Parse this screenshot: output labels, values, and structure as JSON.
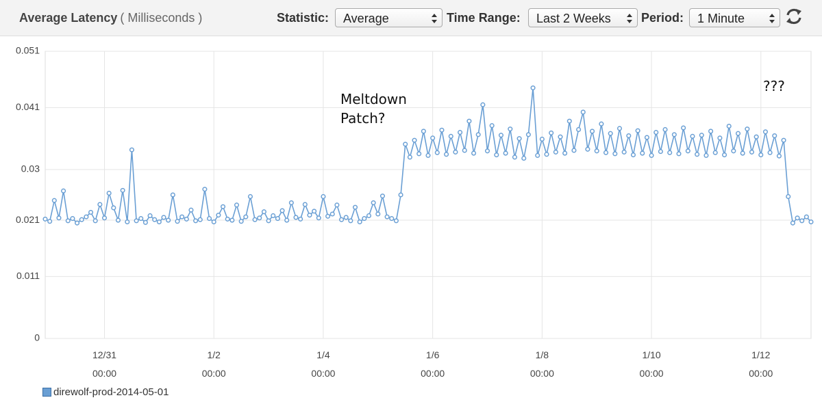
{
  "header": {
    "title": "Average Latency",
    "unit": "( Milliseconds )",
    "controls": [
      {
        "label": "Statistic:",
        "value": "Average"
      },
      {
        "label": "Time Range:",
        "value": "Last 2 Weeks"
      },
      {
        "label": "Period:",
        "value": "1 Minute"
      }
    ]
  },
  "chart_data": {
    "type": "line",
    "annotations": [
      "Meltdown Patch?",
      "???"
    ],
    "x": [
      "12/29 22:00",
      "12/30 00:00",
      "12/30 02:00",
      "12/30 04:00",
      "12/30 06:00",
      "12/30 08:00",
      "12/30 10:00",
      "12/30 12:00",
      "12/30 14:00",
      "12/30 16:00",
      "12/30 18:00",
      "12/30 20:00",
      "12/30 22:00",
      "12/31 00:00",
      "12/31 02:00",
      "12/31 04:00",
      "12/31 06:00",
      "12/31 08:00",
      "12/31 10:00",
      "12/31 12:00",
      "12/31 14:00",
      "12/31 16:00",
      "12/31 18:00",
      "12/31 20:00",
      "12/31 22:00",
      "1/1 00:00",
      "1/1 02:00",
      "1/1 04:00",
      "1/1 06:00",
      "1/1 08:00",
      "1/1 10:00",
      "1/1 12:00",
      "1/1 14:00",
      "1/1 16:00",
      "1/1 18:00",
      "1/1 20:00",
      "1/1 22:00",
      "1/2 00:00",
      "1/2 02:00",
      "1/2 04:00",
      "1/2 06:00",
      "1/2 08:00",
      "1/2 10:00",
      "1/2 12:00",
      "1/2 14:00",
      "1/2 16:00",
      "1/2 18:00",
      "1/2 20:00",
      "1/2 22:00",
      "1/3 00:00",
      "1/3 02:00",
      "1/3 04:00",
      "1/3 06:00",
      "1/3 08:00",
      "1/3 10:00",
      "1/3 12:00",
      "1/3 14:00",
      "1/3 16:00",
      "1/3 18:00",
      "1/3 20:00",
      "1/3 22:00",
      "1/4 00:00",
      "1/4 02:00",
      "1/4 04:00",
      "1/4 06:00",
      "1/4 08:00",
      "1/4 10:00",
      "1/4 12:00",
      "1/4 14:00",
      "1/4 16:00",
      "1/4 18:00",
      "1/4 20:00",
      "1/4 22:00",
      "1/5 00:00",
      "1/5 02:00",
      "1/5 04:00",
      "1/5 06:00",
      "1/5 08:00",
      "1/5 10:00",
      "1/5 12:00",
      "1/5 14:00",
      "1/5 16:00",
      "1/5 18:00",
      "1/5 20:00",
      "1/5 22:00",
      "1/6 00:00",
      "1/6 02:00",
      "1/6 04:00",
      "1/6 06:00",
      "1/6 08:00",
      "1/6 10:00",
      "1/6 12:00",
      "1/6 14:00",
      "1/6 16:00",
      "1/6 18:00",
      "1/6 20:00",
      "1/6 22:00",
      "1/7 00:00",
      "1/7 02:00",
      "1/7 04:00",
      "1/7 06:00",
      "1/7 08:00",
      "1/7 10:00",
      "1/7 12:00",
      "1/7 14:00",
      "1/7 16:00",
      "1/7 18:00",
      "1/7 20:00",
      "1/7 22:00",
      "1/8 00:00",
      "1/8 02:00",
      "1/8 04:00",
      "1/8 06:00",
      "1/8 08:00",
      "1/8 10:00",
      "1/8 12:00",
      "1/8 14:00",
      "1/8 16:00",
      "1/8 18:00",
      "1/8 20:00",
      "1/8 22:00",
      "1/9 00:00",
      "1/9 02:00",
      "1/9 04:00",
      "1/9 06:00",
      "1/9 08:00",
      "1/9 10:00",
      "1/9 12:00",
      "1/9 14:00",
      "1/9 16:00",
      "1/9 18:00",
      "1/9 20:00",
      "1/9 22:00",
      "1/10 00:00",
      "1/10 02:00",
      "1/10 04:00",
      "1/10 06:00",
      "1/10 08:00",
      "1/10 10:00",
      "1/10 12:00",
      "1/10 14:00",
      "1/10 16:00",
      "1/10 18:00",
      "1/10 20:00",
      "1/10 22:00",
      "1/11 00:00",
      "1/11 02:00",
      "1/11 04:00",
      "1/11 06:00",
      "1/11 08:00",
      "1/11 10:00",
      "1/11 12:00",
      "1/11 14:00",
      "1/11 16:00",
      "1/11 18:00",
      "1/11 20:00",
      "1/11 22:00",
      "1/12 00:00",
      "1/12 02:00",
      "1/12 04:00",
      "1/12 06:00",
      "1/12 08:00",
      "1/12 10:00",
      "1/12 12:00",
      "1/12 14:00",
      "1/12 16:00",
      "1/12 18:00",
      "1/12 20:00",
      "1/12 22:00"
    ],
    "series": [
      {
        "name": "direwolf-prod-2014-05-01",
        "color": "#6a9fd4",
        "values": [
          0.0212,
          0.0208,
          0.0245,
          0.0214,
          0.0262,
          0.0209,
          0.0213,
          0.0205,
          0.0211,
          0.0216,
          0.0224,
          0.0209,
          0.0238,
          0.0214,
          0.0258,
          0.0232,
          0.021,
          0.0263,
          0.0207,
          0.0335,
          0.0209,
          0.0213,
          0.0206,
          0.0218,
          0.0211,
          0.0207,
          0.0215,
          0.021,
          0.0255,
          0.0208,
          0.0216,
          0.0212,
          0.0228,
          0.0209,
          0.0211,
          0.0265,
          0.0213,
          0.0207,
          0.0219,
          0.0234,
          0.0212,
          0.021,
          0.0237,
          0.0208,
          0.0216,
          0.0252,
          0.0211,
          0.0214,
          0.0225,
          0.0209,
          0.0218,
          0.0213,
          0.0227,
          0.021,
          0.0241,
          0.0215,
          0.0212,
          0.0238,
          0.0219,
          0.0226,
          0.0214,
          0.0252,
          0.0217,
          0.0221,
          0.0237,
          0.0211,
          0.0215,
          0.0209,
          0.0233,
          0.0207,
          0.0213,
          0.0218,
          0.0241,
          0.0221,
          0.0253,
          0.0216,
          0.0213,
          0.0209,
          0.0255,
          0.0345,
          0.0322,
          0.0352,
          0.0328,
          0.0368,
          0.0325,
          0.0356,
          0.033,
          0.037,
          0.0327,
          0.0359,
          0.0331,
          0.0366,
          0.0334,
          0.0386,
          0.0329,
          0.0362,
          0.0415,
          0.0333,
          0.0378,
          0.0326,
          0.0361,
          0.0329,
          0.0372,
          0.0322,
          0.0355,
          0.032,
          0.0362,
          0.0445,
          0.0325,
          0.0354,
          0.0327,
          0.0365,
          0.0331,
          0.0358,
          0.0329,
          0.0386,
          0.0334,
          0.0371,
          0.0402,
          0.0336,
          0.0368,
          0.0333,
          0.0381,
          0.033,
          0.0364,
          0.0328,
          0.0373,
          0.0331,
          0.036,
          0.0326,
          0.0369,
          0.0329,
          0.0357,
          0.0325,
          0.0366,
          0.0332,
          0.0371,
          0.033,
          0.0362,
          0.0328,
          0.0374,
          0.0333,
          0.0359,
          0.0327,
          0.0361,
          0.0325,
          0.0368,
          0.033,
          0.0356,
          0.0326,
          0.0377,
          0.0333,
          0.0364,
          0.0329,
          0.0372,
          0.0331,
          0.0358,
          0.0326,
          0.0367,
          0.033,
          0.036,
          0.0324,
          0.0352,
          0.0252,
          0.0205,
          0.0214,
          0.0209,
          0.0216,
          0.0207
        ]
      }
    ],
    "xlim": [
      "12/29 22:00",
      "1/12 22:00"
    ],
    "xticks": [
      "12/31 00:00",
      "1/2 00:00",
      "1/4 00:00",
      "1/6 00:00",
      "1/8 00:00",
      "1/10 00:00",
      "1/12 00:00"
    ],
    "ylim": [
      0,
      0.051
    ],
    "yticks": [
      0,
      0.011,
      0.021,
      0.03,
      0.041,
      0.051
    ],
    "grid": true
  }
}
